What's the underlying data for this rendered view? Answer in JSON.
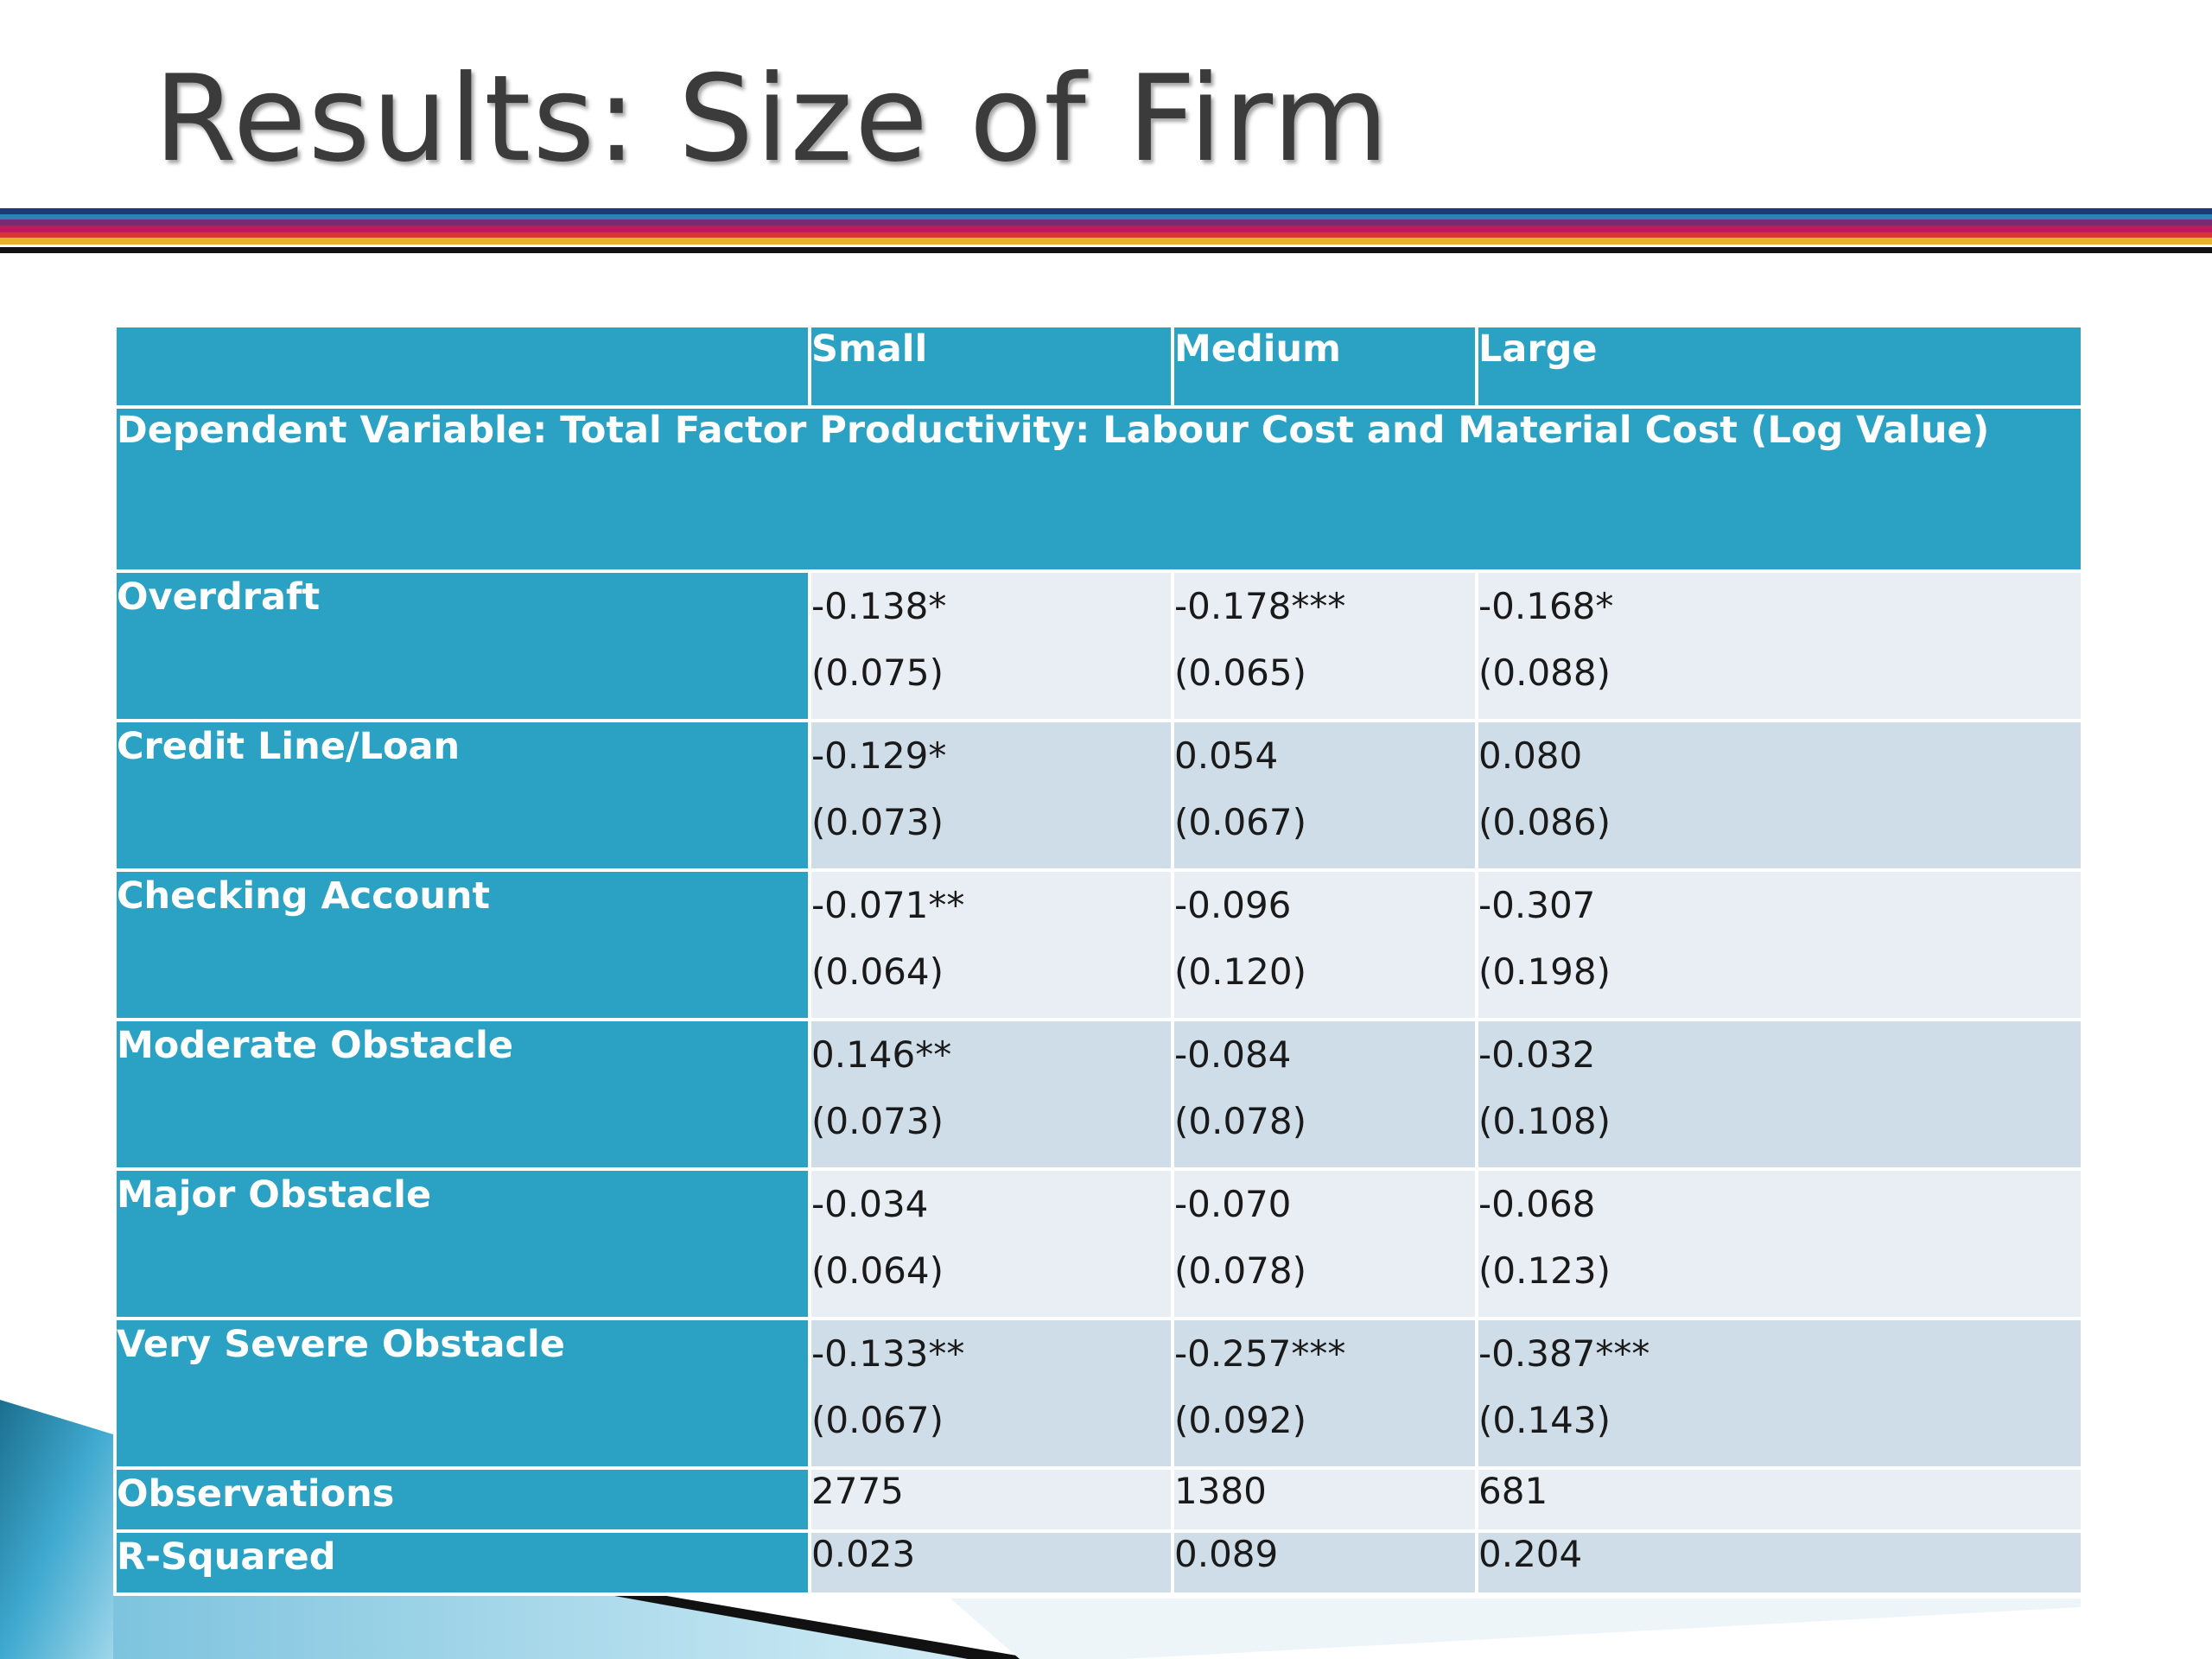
{
  "slide": {
    "title": "Results: Size of Firm"
  },
  "table": {
    "columns": [
      "",
      "Small",
      "Medium",
      "Large"
    ],
    "dependent_variable": "Dependent Variable: Total Factor Productivity: Labour Cost and Material Cost (Log Value)",
    "rows": [
      {
        "label": "Overdraft",
        "small": {
          "coef": "-0.138*",
          "se": "(0.075)"
        },
        "medium": {
          "coef": "-0.178***",
          "se": "(0.065)"
        },
        "large": {
          "coef": "-0.168*",
          "se": "(0.088)"
        }
      },
      {
        "label": "Credit Line/Loan",
        "small": {
          "coef": "-0.129*",
          "se": "(0.073)"
        },
        "medium": {
          "coef": "0.054",
          "se": "(0.067)"
        },
        "large": {
          "coef": "0.080",
          "se": "(0.086)"
        }
      },
      {
        "label": "Checking Account",
        "small": {
          "coef": "-0.071**",
          "se": "(0.064)"
        },
        "medium": {
          "coef": "-0.096",
          "se": "(0.120)"
        },
        "large": {
          "coef": "-0.307",
          "se": "(0.198)"
        }
      },
      {
        "label": "Moderate Obstacle",
        "small": {
          "coef": "0.146**",
          "se": "(0.073)"
        },
        "medium": {
          "coef": "-0.084",
          "se": "(0.078)"
        },
        "large": {
          "coef": "-0.032",
          "se": "(0.108)"
        }
      },
      {
        "label": "Major Obstacle",
        "small": {
          "coef": "-0.034",
          "se": "(0.064)"
        },
        "medium": {
          "coef": "-0.070",
          "se": "(0.078)"
        },
        "large": {
          "coef": "-0.068",
          "se": "(0.123)"
        }
      },
      {
        "label": "Very Severe Obstacle",
        "small": {
          "coef": "-0.133**",
          "se": "(0.067)"
        },
        "medium": {
          "coef": "-0.257***",
          "se": "(0.092)"
        },
        "large": {
          "coef": "-0.387***",
          "se": "(0.143)"
        }
      }
    ],
    "summary": [
      {
        "label": "Observations",
        "small": "2775",
        "medium": "1380",
        "large": "681"
      },
      {
        "label": "R-Squared",
        "small": "0.023",
        "medium": "0.089",
        "large": "0.204"
      }
    ]
  },
  "colors": {
    "header_bg": "#2ba2c3",
    "row_light": "#e8eef4",
    "row_dark": "#cfdde8",
    "title_text": "#3b3b3b"
  }
}
